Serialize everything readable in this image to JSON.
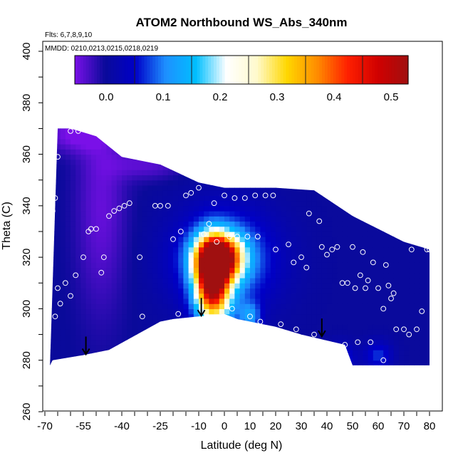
{
  "chart_data": {
    "type": "heatmap",
    "title": "ATOM2 Northbound WS_Abs_340nm",
    "subtitle_flights": "Flts: 6,7,8,9,10",
    "subtitle_dates": "MMDD: 0210,0213,0215,0218,0219",
    "xlabel": "Latitude (deg N)",
    "ylabel": "Theta (C)",
    "xlim": [
      -70,
      80
    ],
    "ylim": [
      260,
      400
    ],
    "x_ticks": [
      "-70",
      "-55",
      "-40",
      "-25",
      "-10",
      "0",
      "10",
      "20",
      "30",
      "40",
      "50",
      "60",
      "70",
      "80"
    ],
    "y_ticks": [
      "260",
      "280",
      "300",
      "320",
      "340",
      "360",
      "380",
      "400"
    ],
    "colorbar": {
      "range": [
        -0.055,
        0.53
      ],
      "ticks": [
        "0.0",
        "0.1",
        "0.2",
        "0.3",
        "0.4",
        "0.5"
      ],
      "tick_values": [
        0,
        0.1,
        0.2,
        0.3,
        0.4,
        0.5
      ],
      "colors": [
        "#7a10e8",
        "#0a0a9a",
        "#0000c8",
        "#1e90ff",
        "#00bfff",
        "#ffffff",
        "#fffacd",
        "#ffd700",
        "#ff8c00",
        "#ff2000",
        "#d00000",
        "#a01010"
      ]
    },
    "top_boundary": [
      [
        -65,
        370
      ],
      [
        -60,
        370
      ],
      [
        -50,
        367
      ],
      [
        -40,
        359
      ],
      [
        -25,
        356
      ],
      [
        -10,
        349
      ],
      [
        0,
        347
      ],
      [
        20,
        347
      ],
      [
        35,
        346
      ],
      [
        50,
        336
      ],
      [
        60,
        331
      ],
      [
        70,
        326
      ],
      [
        80,
        323
      ]
    ],
    "bottom_boundary": [
      [
        80,
        278
      ],
      [
        50,
        278
      ],
      [
        47,
        286
      ],
      [
        30,
        290
      ],
      [
        20,
        293
      ],
      [
        5,
        296
      ],
      [
        0,
        298
      ],
      [
        -10,
        297
      ],
      [
        -20,
        296
      ],
      [
        -25,
        295
      ],
      [
        -45,
        284
      ],
      [
        -55,
        282
      ],
      [
        -67,
        280
      ],
      [
        -68,
        278
      ]
    ],
    "anomalies": [
      {
        "x": -2,
        "y": 320,
        "amp": 0.5,
        "sx": 6,
        "sy": 6
      },
      {
        "x": -5,
        "y": 313,
        "amp": 0.32,
        "sx": 4,
        "sy": 9
      },
      {
        "x": -4,
        "y": 305,
        "amp": 0.22,
        "sx": 5,
        "sy": 9
      },
      {
        "x": 0,
        "y": 319,
        "amp": 0.12,
        "sx": 14,
        "sy": 14
      },
      {
        "x": -48,
        "y": 340,
        "amp": -0.045,
        "sx": 7,
        "sy": 30
      },
      {
        "x": -58,
        "y": 368,
        "amp": -0.055,
        "sx": 9,
        "sy": 5
      },
      {
        "x": -30,
        "y": 356,
        "amp": -0.04,
        "sx": 10,
        "sy": 4
      },
      {
        "x": 10,
        "y": 297,
        "amp": 0.1,
        "sx": 3,
        "sy": 4
      },
      {
        "x": 45,
        "y": 281,
        "amp": 0.08,
        "sx": 4,
        "sy": 4
      },
      {
        "x": 60,
        "y": 282,
        "amp": 0.07,
        "sx": 4,
        "sy": 4
      }
    ],
    "samples": [
      [
        -67,
        338
      ],
      [
        -66,
        343
      ],
      [
        -65,
        359
      ],
      [
        -60,
        369
      ],
      [
        -57,
        369
      ],
      [
        -66,
        297
      ],
      [
        -65,
        308
      ],
      [
        -64,
        302
      ],
      [
        -62,
        310
      ],
      [
        -60,
        305
      ],
      [
        -58,
        313
      ],
      [
        -55,
        320
      ],
      [
        -53,
        330
      ],
      [
        -52,
        331
      ],
      [
        -50,
        331
      ],
      [
        -48,
        314
      ],
      [
        -47,
        320
      ],
      [
        -45,
        336
      ],
      [
        -43,
        338
      ],
      [
        -41,
        339
      ],
      [
        -39,
        340
      ],
      [
        -37,
        341
      ],
      [
        -33,
        320
      ],
      [
        -32,
        297
      ],
      [
        -27,
        340
      ],
      [
        -25,
        340
      ],
      [
        -22,
        340
      ],
      [
        -20,
        327
      ],
      [
        -18,
        298
      ],
      [
        -17,
        330
      ],
      [
        -15,
        344
      ],
      [
        -13,
        345
      ],
      [
        -10,
        347
      ],
      [
        -8,
        329
      ],
      [
        -6,
        333
      ],
      [
        -4,
        341
      ],
      [
        -3,
        326
      ],
      [
        0,
        344
      ],
      [
        2,
        328
      ],
      [
        3,
        300
      ],
      [
        4,
        343
      ],
      [
        5,
        328
      ],
      [
        8,
        343
      ],
      [
        9,
        328
      ],
      [
        10,
        297
      ],
      [
        12,
        344
      ],
      [
        13,
        328
      ],
      [
        14,
        295
      ],
      [
        16,
        344
      ],
      [
        19,
        344
      ],
      [
        20,
        323
      ],
      [
        22,
        294
      ],
      [
        25,
        325
      ],
      [
        27,
        318
      ],
      [
        28,
        292
      ],
      [
        30,
        320
      ],
      [
        32,
        316
      ],
      [
        33,
        337
      ],
      [
        35,
        290
      ],
      [
        37,
        334
      ],
      [
        38,
        324
      ],
      [
        40,
        321
      ],
      [
        42,
        323
      ],
      [
        44,
        324
      ],
      [
        46,
        310
      ],
      [
        47,
        286
      ],
      [
        48,
        310
      ],
      [
        50,
        324
      ],
      [
        51,
        308
      ],
      [
        52,
        287
      ],
      [
        53,
        313
      ],
      [
        54,
        322
      ],
      [
        55,
        308
      ],
      [
        56,
        311
      ],
      [
        57,
        287
      ],
      [
        58,
        318
      ],
      [
        60,
        308
      ],
      [
        62,
        300
      ],
      [
        62,
        280
      ],
      [
        63,
        317
      ],
      [
        64,
        309
      ],
      [
        65,
        304
      ],
      [
        66,
        306
      ],
      [
        67,
        292
      ],
      [
        70,
        292
      ],
      [
        72,
        290
      ],
      [
        73,
        323
      ],
      [
        75,
        292
      ],
      [
        77,
        299
      ],
      [
        79,
        323
      ],
      [
        80,
        323
      ]
    ],
    "arrows": [
      [
        -54,
        282
      ],
      [
        -9,
        297
      ],
      [
        38,
        289
      ]
    ]
  }
}
